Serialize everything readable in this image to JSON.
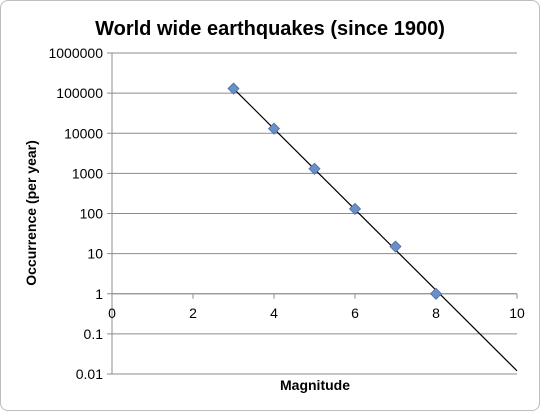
{
  "chart_data": {
    "type": "scatter",
    "title": "World wide earthquakes (since 1900)",
    "xlabel": "Magnitude",
    "ylabel": "Occurrence (per year)",
    "xlim": [
      0,
      10
    ],
    "ylim": [
      0.01,
      1000000
    ],
    "y_scale": "log",
    "grid": "horizontal",
    "x_ticks": [
      "0",
      "2",
      "4",
      "6",
      "8",
      "10"
    ],
    "y_ticks": [
      "0.01",
      "0.1",
      "1",
      "10",
      "100",
      "1000",
      "10000",
      "100000",
      "1000000"
    ],
    "series": [
      {
        "x": [
          3,
          4,
          5,
          6,
          7,
          8
        ],
        "y": [
          130000,
          13000,
          1300,
          130,
          15,
          1
        ],
        "marker": "diamond",
        "color": "#6a8fc9"
      }
    ],
    "trendline": {
      "x": [
        3,
        10
      ],
      "y": [
        130000,
        0.012
      ],
      "color": "#000000"
    }
  }
}
